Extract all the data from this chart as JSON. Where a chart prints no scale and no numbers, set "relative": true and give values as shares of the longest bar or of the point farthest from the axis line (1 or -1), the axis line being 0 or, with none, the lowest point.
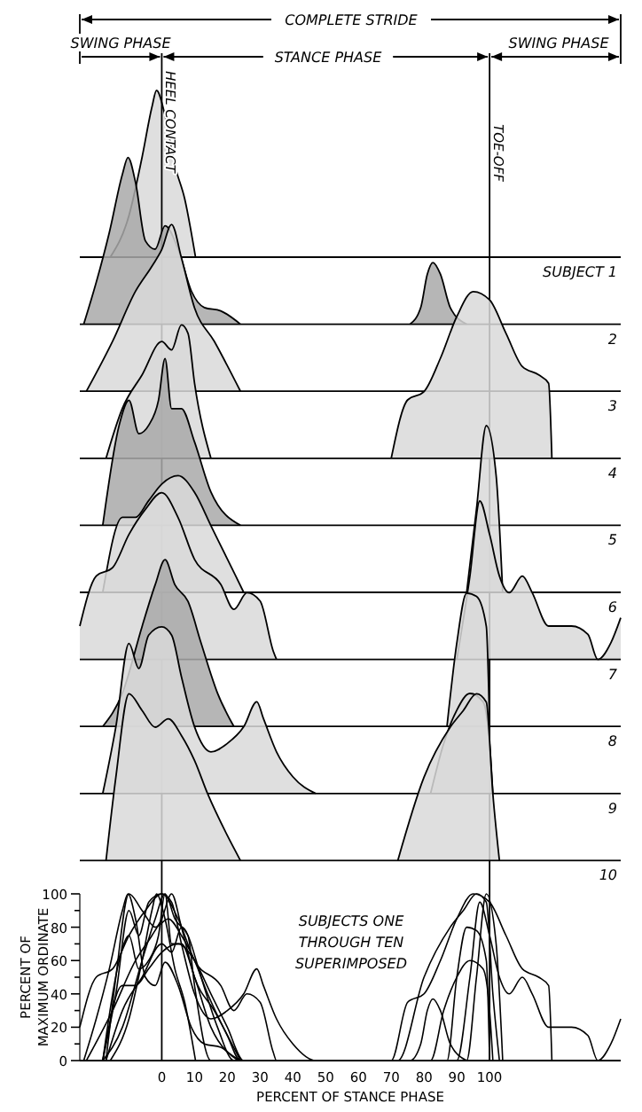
{
  "chart_data": [
    {
      "type": "area",
      "title": "SUBJECT 1",
      "relative": true,
      "xlim": [
        -25,
        140
      ],
      "annotations": [
        "COMPLETE STRIDE",
        "SWING PHASE",
        "STANCE PHASE",
        "SWING PHASE"
      ],
      "ref_lines": [
        {
          "axis": "x",
          "value": 0,
          "label": "HEEL CONTACT"
        },
        {
          "axis": "x",
          "value": 100,
          "label": "TOE-OFF"
        }
      ],
      "series": [
        {
          "color": "#d9d9d9",
          "x": [
            -15.7,
            -10,
            -6,
            -3,
            -1.6,
            1,
            4,
            7,
            10.3
          ],
          "values": [
            0,
            0.25,
            0.6,
            0.9,
            1,
            0.85,
            0.55,
            0.35,
            0
          ]
        }
      ]
    },
    {
      "type": "area",
      "title": "2",
      "relative": true,
      "xlim": [
        -25,
        140
      ],
      "series": [
        {
          "color": "#a9a9a9",
          "x": [
            -23.8,
            -20,
            -16,
            -12,
            -10.3,
            -8,
            -5,
            -2,
            1,
            5,
            9,
            13,
            18,
            24,
            50,
            75.7,
            79,
            81,
            82.7,
            85,
            88,
            93
          ],
          "values": [
            0,
            0.25,
            0.55,
            0.9,
            1,
            0.85,
            0.5,
            0.45,
            0.59,
            0.45,
            0.2,
            0.1,
            0.08,
            0,
            null,
            0,
            0.1,
            0.3,
            0.37,
            0.3,
            0.1,
            0
          ]
        }
      ]
    },
    {
      "type": "area",
      "title": "3",
      "relative": true,
      "xlim": [
        -25,
        140
      ],
      "series": [
        {
          "color": "#d9d9d9",
          "x": [
            -23,
            -15,
            -8,
            -3,
            0,
            3,
            6,
            10,
            16,
            24
          ],
          "values": [
            0,
            0.3,
            0.6,
            0.75,
            0.85,
            1,
            0.8,
            0.5,
            0.3,
            0
          ]
        }
      ]
    },
    {
      "type": "area",
      "title": "4",
      "relative": true,
      "xlim": [
        -25,
        140
      ],
      "series": [
        {
          "color": "#d9d9d9",
          "x": [
            -17,
            -12,
            -6,
            0,
            3,
            6,
            8,
            10,
            15,
            40,
            70,
            75,
            80,
            85,
            90,
            95,
            100,
            105,
            110,
            115,
            118,
            119
          ],
          "values": [
            0,
            0.3,
            0.5,
            0.7,
            0.65,
            0.8,
            0.75,
            0.45,
            0,
            null,
            0,
            0.35,
            0.4,
            0.6,
            0.85,
            1,
            0.95,
            0.75,
            0.55,
            0.5,
            0.45,
            0
          ]
        }
      ]
    },
    {
      "type": "area",
      "title": "5",
      "relative": true,
      "xlim": [
        -25,
        140
      ],
      "series": [
        {
          "color": "#a9a9a9",
          "x": [
            -18,
            -13,
            -10,
            -7,
            -4,
            -1,
            1,
            3,
            6,
            10,
            15,
            24
          ],
          "values": [
            0,
            0.6,
            0.75,
            0.55,
            0.6,
            0.75,
            1,
            0.7,
            0.7,
            0.5,
            0.2,
            0
          ]
        }
      ]
    },
    {
      "type": "area",
      "title": "6",
      "relative": true,
      "xlim": [
        -25,
        140
      ],
      "series": [
        {
          "color": "#d9d9d9",
          "x": [
            -18,
            -12,
            -8,
            -4,
            0,
            5,
            10,
            15,
            20,
            25,
            60,
            93,
            96,
            99,
            102,
            104
          ],
          "values": [
            0,
            0.45,
            0.45,
            0.55,
            0.65,
            0.7,
            0.6,
            0.4,
            0.2,
            0,
            null,
            0,
            0.5,
            1,
            0.7,
            0
          ]
        }
      ]
    },
    {
      "type": "area",
      "title": "7",
      "relative": true,
      "xlim": [
        -25,
        140
      ],
      "series": [
        {
          "color": "#d9d9d9",
          "x": [
            -25,
            -20,
            -15,
            -10,
            -5,
            0,
            5,
            10,
            18,
            22,
            26,
            30,
            34,
            35,
            60,
            90,
            94,
            97,
            100,
            103,
            106,
            110,
            113,
            118,
            125,
            130,
            133,
            137,
            140
          ],
          "values": [
            0.2,
            0.5,
            0.55,
            0.75,
            0.9,
            1,
            0.85,
            0.6,
            0.45,
            0.3,
            0.4,
            0.35,
            0.05,
            0,
            null,
            0,
            0.5,
            0.95,
            0.75,
            0.5,
            0.4,
            0.5,
            0.4,
            0.2,
            0.2,
            0.15,
            0,
            0.1,
            0.25
          ]
        }
      ]
    },
    {
      "type": "area",
      "title": "8",
      "relative": true,
      "xlim": [
        -25,
        140
      ],
      "series": [
        {
          "color": "#a9a9a9",
          "x": [
            -18,
            -12,
            -6,
            -2,
            1,
            4,
            8,
            12,
            17,
            22
          ],
          "values": [
            0,
            0.2,
            0.6,
            0.85,
            1,
            0.85,
            0.75,
            0.5,
            0.2,
            0
          ]
        },
        {
          "color": "#d9d9d9",
          "x": [
            87,
            90,
            93,
            96,
            99,
            100
          ],
          "values": [
            0,
            0.5,
            0.8,
            0.78,
            0.6,
            0
          ]
        }
      ]
    },
    {
      "type": "area",
      "title": "9",
      "relative": true,
      "xlim": [
        -25,
        140
      ],
      "series": [
        {
          "color": "#d9d9d9",
          "x": [
            -18,
            -14,
            -10,
            -7,
            -4,
            0,
            3,
            6,
            10,
            15,
            20,
            25,
            29,
            31,
            35,
            40,
            47,
            65,
            82,
            86,
            90,
            94,
            98,
            100,
            101
          ],
          "values": [
            0,
            0.4,
            0.9,
            0.75,
            0.95,
            1,
            0.95,
            0.7,
            0.4,
            0.25,
            0.3,
            0.4,
            0.55,
            0.45,
            0.25,
            0.1,
            0,
            null,
            0,
            0.3,
            0.5,
            0.6,
            0.55,
            0.3,
            0
          ]
        }
      ]
    },
    {
      "type": "area",
      "title": "10",
      "relative": true,
      "xlim": [
        -25,
        140
      ],
      "series": [
        {
          "color": "#d9d9d9",
          "x": [
            -17,
            -14,
            -10,
            -6,
            -2,
            2,
            6,
            10,
            14,
            20,
            24,
            50,
            72,
            80,
            88,
            92,
            96,
            99,
            101,
            103
          ],
          "values": [
            0,
            0.5,
            1,
            0.9,
            0.8,
            0.85,
            0.75,
            0.6,
            0.4,
            0.15,
            0,
            null,
            0,
            0.5,
            0.8,
            0.9,
            1,
            0.95,
            0.4,
            0
          ]
        }
      ]
    },
    {
      "type": "line",
      "xlabel": "PERCENT OF STANCE PHASE",
      "ylabel": "PERCENT OF MAXIMUM ORDINATE",
      "annotations": [
        "SUBJECTS ONE THROUGH TEN SUPERIMPOSED"
      ],
      "xlim": [
        -25,
        140
      ],
      "xticks": [
        0,
        10,
        20,
        30,
        40,
        50,
        60,
        70,
        80,
        90,
        100
      ],
      "ylim": [
        0,
        100
      ],
      "yticks": [
        0,
        {
          "value": 10,
          "label": null
        },
        20,
        {
          "value": 30,
          "label": null
        },
        40,
        {
          "value": 50,
          "label": null
        },
        60,
        {
          "value": 70,
          "label": null
        },
        80,
        {
          "value": 90,
          "label": null
        },
        100
      ],
      "series": [
        {
          "color": "#000000",
          "x": [
            -15.7,
            -10,
            -6,
            -3,
            -1.6,
            1,
            4,
            7,
            10.3
          ],
          "values": [
            0,
            25,
            60,
            90,
            100,
            85,
            55,
            35,
            0
          ]
        },
        {
          "color": "#000000",
          "x": [
            -23.8,
            -20,
            -16,
            -12,
            -10.3,
            -8,
            -5,
            -2,
            1,
            5,
            9,
            13,
            18,
            24,
            50,
            75.7,
            79,
            81,
            82.7,
            85,
            88,
            93
          ],
          "values": [
            0,
            25,
            55,
            90,
            100,
            85,
            50,
            45,
            59,
            45,
            20,
            10,
            8,
            0,
            0,
            0,
            10,
            30,
            37,
            30,
            10,
            0
          ]
        },
        {
          "color": "#000000",
          "x": [
            -23,
            -15,
            -8,
            -3,
            0,
            3,
            6,
            10,
            16,
            24
          ],
          "values": [
            0,
            30,
            60,
            75,
            85,
            100,
            80,
            50,
            30,
            0
          ]
        },
        {
          "color": "#000000",
          "x": [
            -17,
            -12,
            -6,
            0,
            3,
            6,
            8,
            10,
            15,
            40,
            70,
            75,
            80,
            85,
            90,
            95,
            100,
            105,
            110,
            115,
            118,
            119
          ],
          "values": [
            0,
            30,
            50,
            70,
            65,
            80,
            75,
            45,
            0,
            0,
            0,
            35,
            40,
            60,
            85,
            100,
            95,
            75,
            55,
            50,
            45,
            0
          ]
        },
        {
          "color": "#000000",
          "x": [
            -18,
            -13,
            -10,
            -7,
            -4,
            -1,
            1,
            3,
            6,
            10,
            15,
            24
          ],
          "values": [
            0,
            60,
            75,
            55,
            60,
            75,
            100,
            70,
            70,
            50,
            20,
            0
          ]
        },
        {
          "color": "#000000",
          "x": [
            -18,
            -12,
            -8,
            -4,
            0,
            5,
            10,
            15,
            20,
            25,
            60,
            93,
            96,
            99,
            102,
            104
          ],
          "values": [
            0,
            45,
            45,
            55,
            65,
            70,
            60,
            40,
            20,
            0,
            0,
            0,
            50,
            100,
            70,
            0
          ]
        },
        {
          "color": "#000000",
          "x": [
            -25,
            -20,
            -15,
            -10,
            -5,
            0,
            5,
            10,
            18,
            22,
            26,
            30,
            34,
            35,
            60,
            90,
            94,
            97,
            100,
            103,
            106,
            110,
            113,
            118,
            125,
            130,
            133,
            137,
            140
          ],
          "values": [
            20,
            50,
            55,
            75,
            90,
            100,
            85,
            60,
            45,
            30,
            40,
            35,
            5,
            0,
            0,
            0,
            50,
            95,
            75,
            50,
            40,
            50,
            40,
            20,
            20,
            15,
            0,
            10,
            25
          ]
        },
        {
          "color": "#000000",
          "x": [
            -18,
            -12,
            -6,
            -2,
            1,
            4,
            8,
            12,
            17,
            22,
            87,
            90,
            93,
            96,
            99,
            100
          ],
          "values": [
            0,
            20,
            60,
            85,
            100,
            85,
            75,
            50,
            20,
            0,
            0,
            50,
            80,
            78,
            60,
            0
          ]
        },
        {
          "color": "#000000",
          "x": [
            -18,
            -14,
            -10,
            -7,
            -4,
            0,
            3,
            6,
            10,
            15,
            20,
            25,
            29,
            31,
            35,
            40,
            47,
            65,
            82,
            86,
            90,
            94,
            98,
            100,
            101
          ],
          "values": [
            0,
            40,
            90,
            75,
            95,
            100,
            95,
            70,
            40,
            25,
            30,
            40,
            55,
            45,
            25,
            10,
            0,
            0,
            0,
            30,
            50,
            60,
            55,
            30,
            0
          ]
        },
        {
          "color": "#000000",
          "x": [
            -17,
            -14,
            -10,
            -6,
            -2,
            2,
            6,
            10,
            14,
            20,
            24,
            50,
            72,
            80,
            88,
            92,
            96,
            99,
            101,
            103
          ],
          "values": [
            0,
            50,
            100,
            90,
            80,
            85,
            75,
            60,
            40,
            15,
            0,
            0,
            0,
            50,
            80,
            90,
            100,
            95,
            40,
            0
          ]
        }
      ]
    }
  ]
}
